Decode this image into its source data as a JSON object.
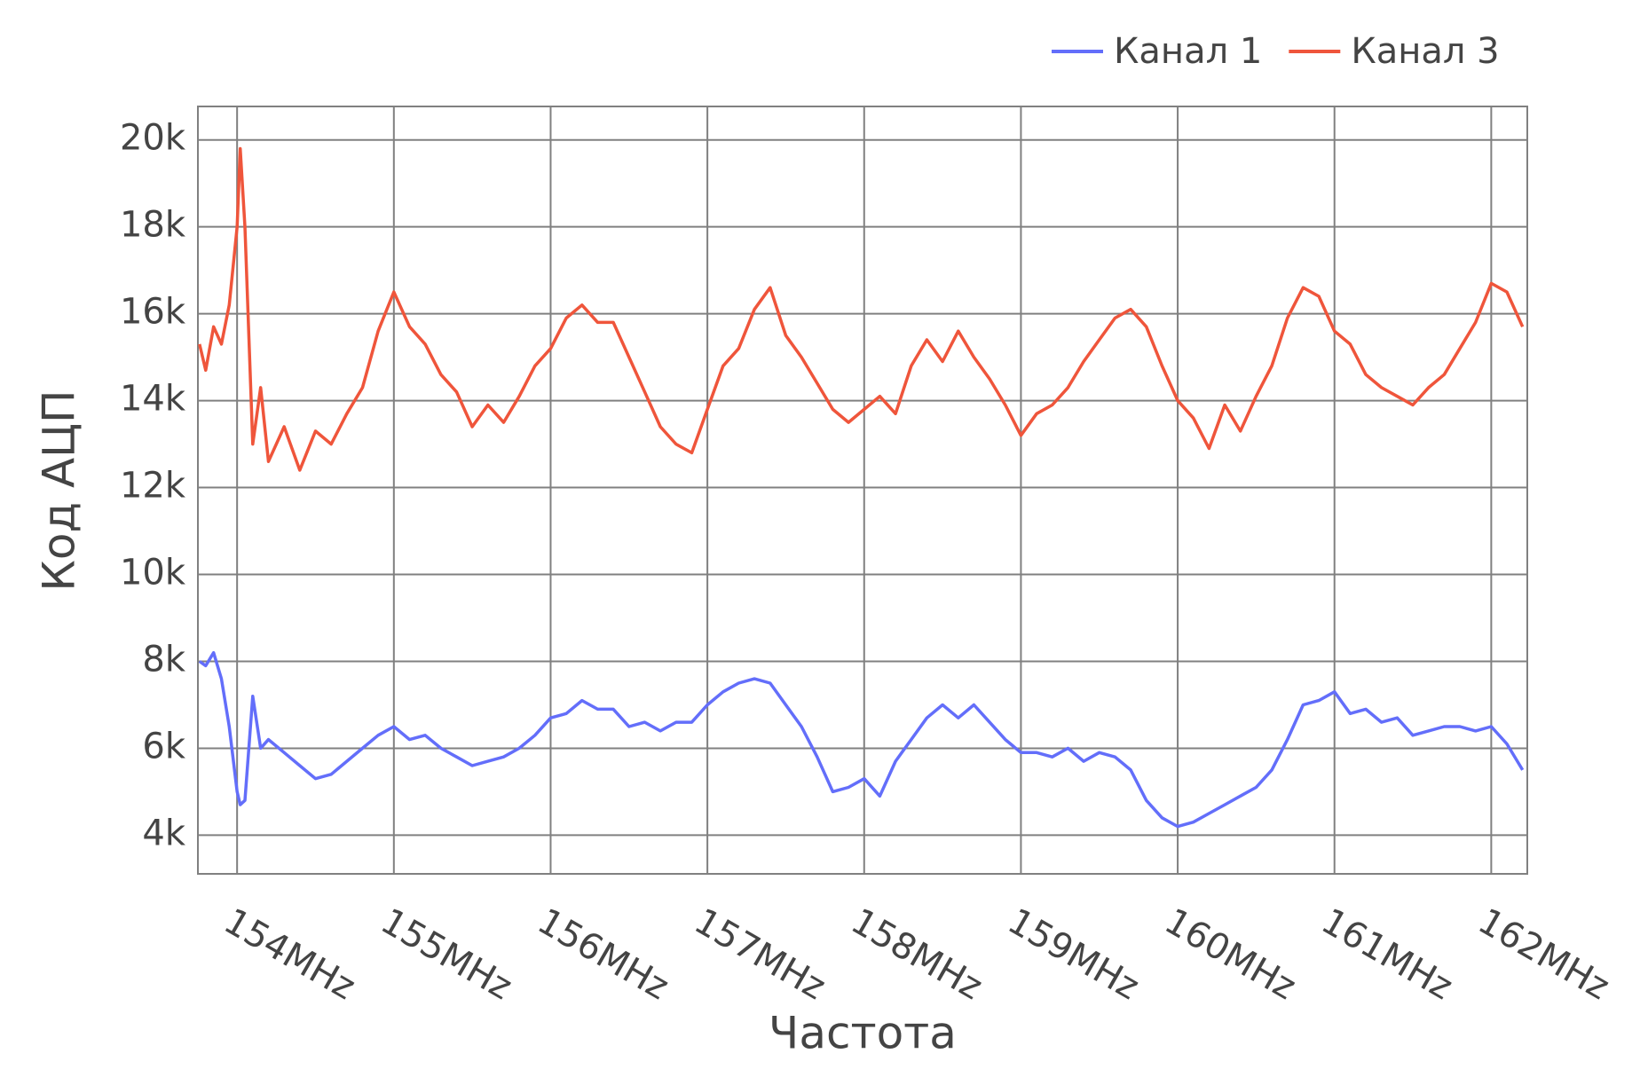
{
  "chart_data": {
    "type": "line",
    "x_title": "Частота",
    "y_title": "Код АЦП",
    "x": [
      153.76,
      153.8,
      153.85,
      153.9,
      153.95,
      154.0,
      154.02,
      154.05,
      154.1,
      154.15,
      154.2,
      154.3,
      154.4,
      154.5,
      154.6,
      154.7,
      154.8,
      154.9,
      155.0,
      155.1,
      155.2,
      155.3,
      155.4,
      155.5,
      155.6,
      155.7,
      155.8,
      155.9,
      156.0,
      156.1,
      156.2,
      156.3,
      156.4,
      156.5,
      156.6,
      156.7,
      156.8,
      156.9,
      157.0,
      157.1,
      157.2,
      157.3,
      157.4,
      157.5,
      157.6,
      157.7,
      157.8,
      157.9,
      158.0,
      158.1,
      158.2,
      158.3,
      158.4,
      158.5,
      158.6,
      158.7,
      158.8,
      158.9,
      159.0,
      159.1,
      159.2,
      159.3,
      159.4,
      159.5,
      159.6,
      159.7,
      159.8,
      159.9,
      160.0,
      160.1,
      160.2,
      160.3,
      160.4,
      160.5,
      160.6,
      160.7,
      160.8,
      160.9,
      161.0,
      161.1,
      161.2,
      161.3,
      161.4,
      161.5,
      161.6,
      161.7,
      161.8,
      161.9,
      162.0,
      162.1,
      162.2
    ],
    "series": [
      {
        "name": "Канал 1",
        "color": "#636efa",
        "values": [
          8000,
          7900,
          8200,
          7600,
          6500,
          5000,
          4700,
          4800,
          7200,
          6000,
          6200,
          5900,
          5600,
          5300,
          5400,
          5700,
          6000,
          6300,
          6500,
          6200,
          6300,
          6000,
          5800,
          5600,
          5700,
          5800,
          6000,
          6300,
          6700,
          6800,
          7100,
          6900,
          6900,
          6500,
          6600,
          6400,
          6600,
          6600,
          7000,
          7300,
          7500,
          7600,
          7500,
          7000,
          6500,
          5800,
          5000,
          5100,
          5300,
          4900,
          5700,
          6200,
          6700,
          7000,
          6700,
          7000,
          6600,
          6200,
          5900,
          5900,
          5800,
          6000,
          5700,
          5900,
          5800,
          5500,
          4800,
          4400,
          4200,
          4300,
          4500,
          4700,
          4900,
          5100,
          5500,
          6200,
          7000,
          7100,
          7300,
          6800,
          6900,
          6600,
          6700,
          6300,
          6400,
          6500,
          6500,
          6400,
          6500,
          6100,
          5500
        ]
      },
      {
        "name": "Канал 3",
        "color": "#ef553b",
        "values": [
          15300,
          14700,
          15700,
          15300,
          16200,
          18000,
          19800,
          18000,
          13000,
          14300,
          12600,
          13400,
          12400,
          13300,
          13000,
          13700,
          14300,
          15600,
          16500,
          15700,
          15300,
          14600,
          14200,
          13400,
          13900,
          13500,
          14100,
          14800,
          15200,
          15900,
          16200,
          15800,
          15800,
          15000,
          14200,
          13400,
          13000,
          12800,
          13800,
          14800,
          15200,
          16100,
          16600,
          15500,
          15000,
          14400,
          13800,
          13500,
          13800,
          14100,
          13700,
          14800,
          15400,
          14900,
          15600,
          15000,
          14500,
          13900,
          13200,
          13700,
          13900,
          14300,
          14900,
          15400,
          15900,
          16100,
          15700,
          14800,
          14000,
          13600,
          12900,
          13900,
          13300,
          14100,
          14800,
          15900,
          16600,
          16400,
          15600,
          15300,
          14600,
          14300,
          14100,
          13900,
          14300,
          14600,
          15200,
          15800,
          16700,
          16500,
          15700
        ]
      }
    ],
    "xlim": [
      153.75,
      162.23
    ],
    "ylim": [
      3110,
      20770
    ],
    "xticks": [
      {
        "value": 154,
        "label": "154MHz"
      },
      {
        "value": 155,
        "label": "155MHz"
      },
      {
        "value": 156,
        "label": "156MHz"
      },
      {
        "value": 157,
        "label": "157MHz"
      },
      {
        "value": 158,
        "label": "158MHz"
      },
      {
        "value": 159,
        "label": "159MHz"
      },
      {
        "value": 160,
        "label": "160MHz"
      },
      {
        "value": 161,
        "label": "161MHz"
      },
      {
        "value": 162,
        "label": "162MHz"
      }
    ],
    "yticks": [
      {
        "value": 4000,
        "label": "4k"
      },
      {
        "value": 6000,
        "label": "6k"
      },
      {
        "value": 8000,
        "label": "8k"
      },
      {
        "value": 10000,
        "label": "10k"
      },
      {
        "value": 12000,
        "label": "12k"
      },
      {
        "value": 14000,
        "label": "14k"
      },
      {
        "value": 16000,
        "label": "16k"
      },
      {
        "value": 18000,
        "label": "18k"
      },
      {
        "value": 20000,
        "label": "20k"
      }
    ],
    "grid": true
  }
}
